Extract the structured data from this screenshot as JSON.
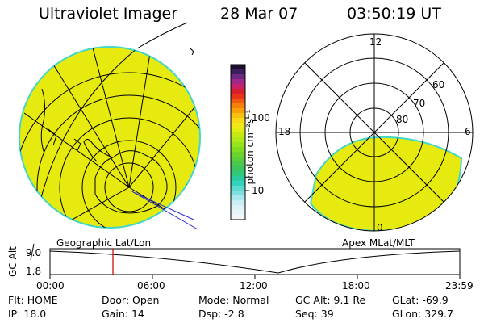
{
  "header": {
    "title": "Ultraviolet Imager",
    "date": "28 Mar 07",
    "time": "03:50:19 UT"
  },
  "colorbar": {
    "unit_label": "photon cm⁻²s⁻¹",
    "ticks": [
      "100",
      "10"
    ]
  },
  "polar": {
    "clock_labels": {
      "top": "12",
      "left": "18",
      "right": "6",
      "bottom": "0"
    },
    "lat_labels": [
      "60",
      "70",
      "80"
    ]
  },
  "map_labels": {
    "left": "Geographic Lat/Lon",
    "right": "Apex MLat/MLT"
  },
  "altitude_plot": {
    "ylabel": "GC Alt",
    "yticks": [
      "9.0",
      "1.8"
    ],
    "xticks": [
      "00:00",
      "06:00",
      "12:00",
      "18:00",
      "23:59"
    ],
    "current_time_marker": "03:50"
  },
  "status": {
    "row1": [
      {
        "label": "Flt:",
        "value": "HOME"
      },
      {
        "label": "Door:",
        "value": "Open"
      },
      {
        "label": "Mode:",
        "value": "Normal"
      },
      {
        "label": "GC Alt:",
        "value": "9.1 Re"
      },
      {
        "label": "GLat:",
        "value": "-69.9"
      }
    ],
    "row2": [
      {
        "label": "IP:",
        "value": "18.0"
      },
      {
        "label": "Gain:",
        "value": "14"
      },
      {
        "label": "Dsp:",
        "value": "-2.8"
      },
      {
        "label": "Seq:",
        "value": "39"
      },
      {
        "label": "GLon:",
        "value": "329.7"
      }
    ]
  },
  "colors": {
    "fill": "#e6ea0e",
    "limb": "#44d6c6",
    "marker": "#cc0000"
  }
}
